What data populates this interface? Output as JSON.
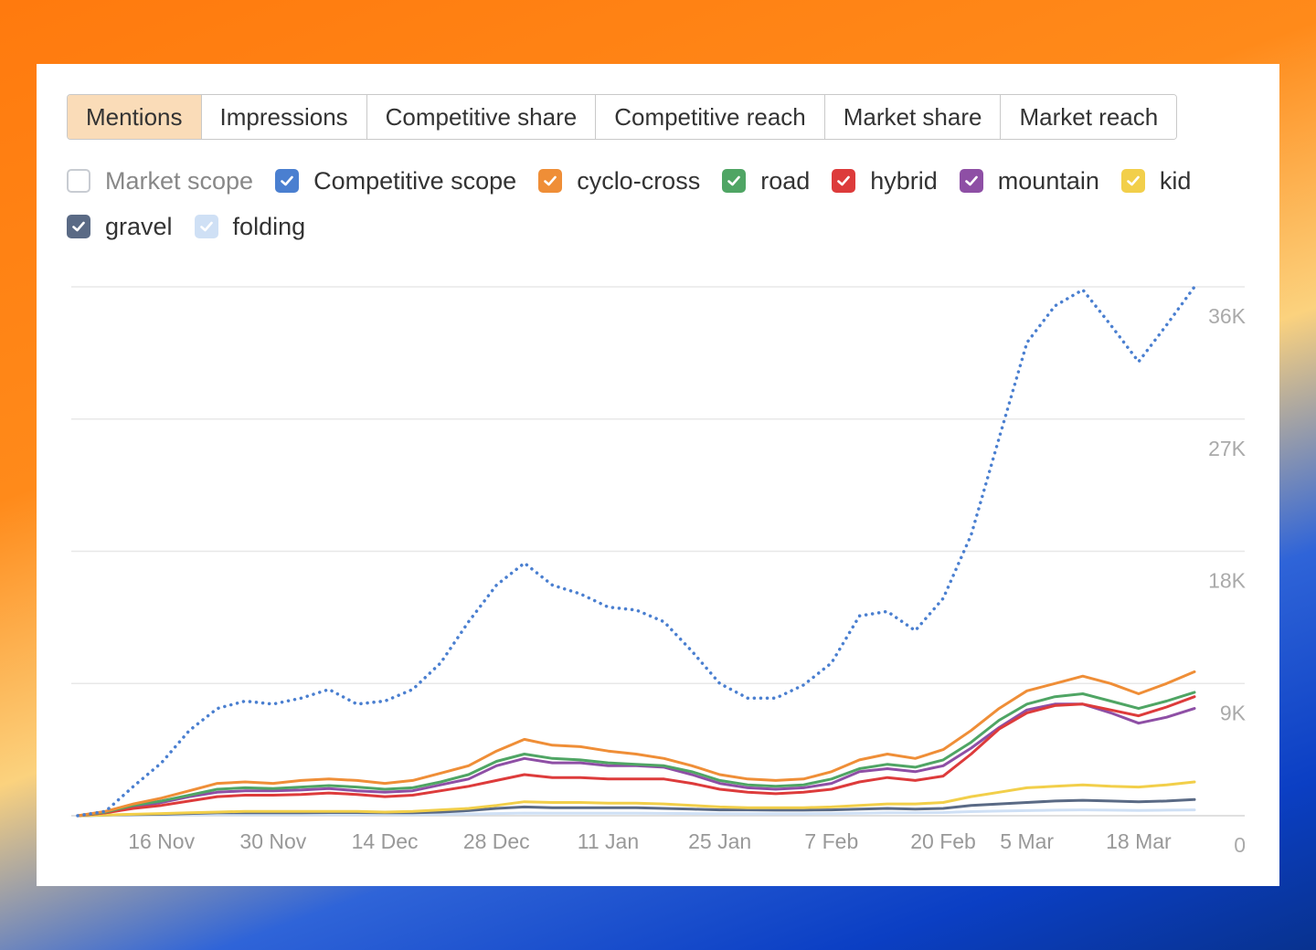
{
  "tabs": [
    {
      "label": "Mentions",
      "active": true
    },
    {
      "label": "Impressions",
      "active": false
    },
    {
      "label": "Competitive share",
      "active": false
    },
    {
      "label": "Competitive reach",
      "active": false
    },
    {
      "label": "Market share",
      "active": false
    },
    {
      "label": "Market reach",
      "active": false
    }
  ],
  "chart_data": {
    "type": "line",
    "categories": [
      null,
      null,
      null,
      "16 Nov",
      null,
      null,
      null,
      "30 Nov",
      null,
      null,
      null,
      "14 Dec",
      null,
      null,
      null,
      "28 Dec",
      null,
      null,
      null,
      "11 Jan",
      null,
      null,
      null,
      "25 Jan",
      null,
      null,
      null,
      "7 Feb",
      null,
      null,
      null,
      "20 Feb",
      null,
      null,
      "5 Mar",
      null,
      null,
      null,
      "18 Mar",
      null,
      null
    ],
    "ylim": [
      0,
      36000
    ],
    "yticks": [
      0,
      {
        "value": 9000,
        "label": "9K"
      },
      {
        "value": 18000,
        "label": "18K"
      },
      {
        "value": 27000,
        "label": "27K"
      },
      {
        "value": 36000,
        "label": "36K"
      }
    ],
    "grid": true,
    "series": [
      {
        "name": "Market scope",
        "color": "#9aa4b1",
        "visible": false
      },
      {
        "name": "Competitive scope",
        "color": "#4a7fd0",
        "visible": true,
        "dotted": true,
        "values": [
          0,
          300,
          2000,
          3600,
          5800,
          7300,
          7800,
          7600,
          8000,
          8600,
          7600,
          7800,
          8600,
          10400,
          13200,
          15700,
          17200,
          15700,
          15100,
          14200,
          14000,
          13200,
          11200,
          9000,
          8000,
          8000,
          8900,
          10400,
          13600,
          13900,
          12600,
          14800,
          19100,
          25700,
          32200,
          34700,
          35800,
          33400,
          30900,
          33400,
          36000
        ]
      },
      {
        "name": "cyclo-cross",
        "color": "#ef8e37",
        "visible": true,
        "values": [
          0,
          300,
          800,
          1200,
          1700,
          2200,
          2300,
          2200,
          2400,
          2500,
          2400,
          2200,
          2400,
          2900,
          3400,
          4400,
          5200,
          4800,
          4700,
          4400,
          4200,
          3900,
          3400,
          2800,
          2500,
          2400,
          2500,
          3000,
          3800,
          4200,
          3900,
          4500,
          5800,
          7300,
          8500,
          9000,
          9500,
          9000,
          8300,
          9000,
          9800
        ]
      },
      {
        "name": "road",
        "color": "#4fa564",
        "visible": true,
        "values": [
          0,
          250,
          700,
          1000,
          1400,
          1800,
          1900,
          1850,
          1950,
          2050,
          1950,
          1800,
          1900,
          2300,
          2800,
          3700,
          4200,
          3900,
          3800,
          3600,
          3500,
          3400,
          3000,
          2400,
          2100,
          2000,
          2100,
          2500,
          3200,
          3500,
          3300,
          3800,
          5000,
          6500,
          7600,
          8100,
          8300,
          7800,
          7300,
          7800,
          8400
        ]
      },
      {
        "name": "hybrid",
        "color": "#dd3b3b",
        "visible": true,
        "values": [
          0,
          200,
          500,
          700,
          1000,
          1300,
          1400,
          1400,
          1450,
          1550,
          1450,
          1300,
          1400,
          1700,
          2000,
          2400,
          2800,
          2600,
          2600,
          2500,
          2500,
          2500,
          2200,
          1800,
          1600,
          1500,
          1600,
          1800,
          2300,
          2600,
          2400,
          2700,
          4200,
          5900,
          7000,
          7500,
          7600,
          7200,
          6800,
          7400,
          8100
        ]
      },
      {
        "name": "mountain",
        "color": "#8e4fa5",
        "visible": true,
        "values": [
          0,
          200,
          600,
          900,
          1300,
          1600,
          1700,
          1700,
          1750,
          1850,
          1700,
          1600,
          1700,
          2100,
          2500,
          3400,
          3900,
          3600,
          3600,
          3400,
          3400,
          3300,
          2800,
          2200,
          1900,
          1800,
          1900,
          2200,
          3000,
          3200,
          3000,
          3400,
          4600,
          6000,
          7200,
          7600,
          7600,
          7000,
          6300,
          6700,
          7300
        ]
      },
      {
        "name": "kid",
        "color": "#f2cf4a",
        "visible": true,
        "values": [
          0,
          50,
          100,
          150,
          200,
          250,
          300,
          300,
          300,
          300,
          300,
          250,
          300,
          400,
          500,
          700,
          950,
          900,
          900,
          850,
          850,
          800,
          700,
          600,
          550,
          550,
          550,
          600,
          700,
          800,
          800,
          900,
          1300,
          1600,
          1900,
          2000,
          2100,
          2000,
          1950,
          2100,
          2300
        ]
      },
      {
        "name": "gravel",
        "color": "#5a6a85",
        "visible": true,
        "values": [
          0,
          50,
          80,
          100,
          150,
          200,
          200,
          200,
          200,
          220,
          220,
          200,
          200,
          250,
          350,
          500,
          600,
          550,
          550,
          550,
          550,
          500,
          450,
          400,
          400,
          380,
          380,
          400,
          450,
          500,
          450,
          500,
          700,
          800,
          900,
          1000,
          1050,
          1000,
          950,
          1000,
          1100
        ]
      },
      {
        "name": "folding",
        "color": "#cfe0f5",
        "visible": true,
        "values": [
          0,
          20,
          40,
          50,
          60,
          80,
          80,
          80,
          80,
          80,
          80,
          80,
          80,
          100,
          120,
          150,
          180,
          170,
          170,
          170,
          170,
          160,
          150,
          140,
          130,
          130,
          130,
          150,
          170,
          200,
          200,
          220,
          280,
          320,
          350,
          380,
          400,
          380,
          360,
          380,
          400
        ]
      }
    ]
  }
}
